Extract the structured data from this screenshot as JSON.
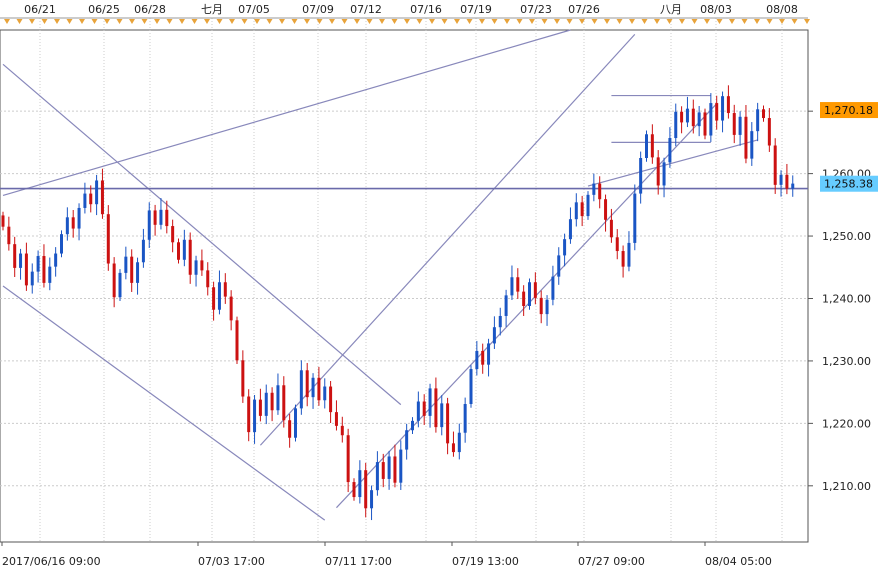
{
  "chart_data": {
    "type": "candlestick",
    "title": "",
    "xlabel": "",
    "ylabel": "",
    "ylim": [
      1201,
      1283
    ],
    "y_ticks": [
      {
        "value": 1210,
        "label": "1,210.00"
      },
      {
        "value": 1220,
        "label": "1,220.00"
      },
      {
        "value": 1230,
        "label": "1,230.00"
      },
      {
        "value": 1240,
        "label": "1,240.00"
      },
      {
        "value": 1250,
        "label": "1,250.00"
      },
      {
        "value": 1260,
        "label": "1,260.00"
      },
      {
        "value": 1270,
        "label": "1,270.00"
      }
    ],
    "top_date_labels": [
      "06/21",
      "06/25",
      "06/28",
      "七月",
      "07/05",
      "07/09",
      "07/12",
      "07/16",
      "07/19",
      "07/23",
      "07/26",
      "八月",
      "08/03",
      "08/08"
    ],
    "bottom_time_labels": [
      "2017/06/16 09:00",
      "07/03 17:00",
      "07/11 17:00",
      "07/19 13:00",
      "07/27 09:00",
      "08/04 05:00"
    ],
    "price_badges": [
      {
        "label": "1,270.18",
        "value": 1270.18,
        "color": "#ff9900"
      },
      {
        "label": "1,258.38",
        "value": 1258.38,
        "color": "#66ccff"
      }
    ],
    "horizontal_line": {
      "value": 1257.6,
      "color": "#6a6aaa"
    },
    "colors": {
      "up": "#1a55c4",
      "down": "#cc1111",
      "trend": "#8888bb",
      "grid": "#cccccc",
      "axis": "#555555",
      "marker": "#e8a33a"
    },
    "candles_close": [
      1251.5,
      1248.7,
      1244.9,
      1247.2,
      1242.1,
      1244.3,
      1246.8,
      1242.5,
      1245.1,
      1247.2,
      1250.3,
      1253.0,
      1251.2,
      1254.5,
      1256.8,
      1255.1,
      1258.9,
      1253.5,
      1245.6,
      1240.2,
      1244.1,
      1246.7,
      1242.5,
      1245.8,
      1249.4,
      1254.1,
      1251.8,
      1254.2,
      1251.6,
      1249.0,
      1246.2,
      1249.4,
      1243.8,
      1246.1,
      1244.5,
      1241.8,
      1238.2,
      1242.6,
      1240.3,
      1236.5,
      1230.1,
      1224.3,
      1218.6,
      1223.8,
      1221.2,
      1224.9,
      1222.1,
      1226.1,
      1220.5,
      1217.7,
      1222.4,
      1228.5,
      1224.2,
      1227.3,
      1223.7,
      1225.9,
      1221.8,
      1219.6,
      1218.1,
      1210.6,
      1208.2,
      1212.5,
      1206.4,
      1209.3,
      1213.8,
      1211.1,
      1214.7,
      1210.5,
      1215.8,
      1218.9,
      1220.4,
      1223.5,
      1221.2,
      1225.6,
      1219.4,
      1223.2,
      1216.8,
      1215.4,
      1218.5,
      1223.1,
      1228.7,
      1231.6,
      1229.4,
      1232.8,
      1235.4,
      1237.2,
      1240.5,
      1243.4,
      1241.1,
      1238.8,
      1242.6,
      1240.1,
      1237.5,
      1239.8,
      1243.5,
      1246.9,
      1249.5,
      1252.7,
      1255.4,
      1253.2,
      1256.6,
      1258.4,
      1255.9,
      1252.6,
      1249.8,
      1247.6,
      1245.1,
      1248.9,
      1256.8,
      1262.5,
      1266.3,
      1262.6,
      1258.1,
      1261.8,
      1265.7,
      1269.9,
      1268.2,
      1270.4,
      1267.6,
      1269.8,
      1266.1,
      1271.3,
      1268.5,
      1272.4,
      1269.7,
      1266.2,
      1269.1,
      1262.4,
      1266.8,
      1270.3,
      1268.9,
      1264.5,
      1258.2,
      1259.8,
      1257.6,
      1258.4
    ],
    "trend_lines": [
      {
        "from": [
          0,
          1256.5
        ],
        "to": [
          97,
          1283.0
        ]
      },
      {
        "from": [
          0,
          1277.5
        ],
        "to": [
          68,
          1223.0
        ]
      },
      {
        "from": [
          0,
          1242.0
        ],
        "to": [
          55,
          1204.5
        ]
      },
      {
        "from": [
          44,
          1216.5
        ],
        "to": [
          108,
          1282.3
        ]
      },
      {
        "from": [
          57,
          1206.5
        ],
        "to": [
          122,
          1271.2
        ]
      },
      {
        "from": [
          100,
          1258.0
        ],
        "to": [
          129,
          1265.4
        ]
      },
      {
        "from": [
          104,
          1272.5
        ],
        "to": [
          121,
          1272.5
        ]
      },
      {
        "from": [
          104,
          1265.0
        ],
        "to": [
          121,
          1265.0
        ]
      }
    ]
  }
}
